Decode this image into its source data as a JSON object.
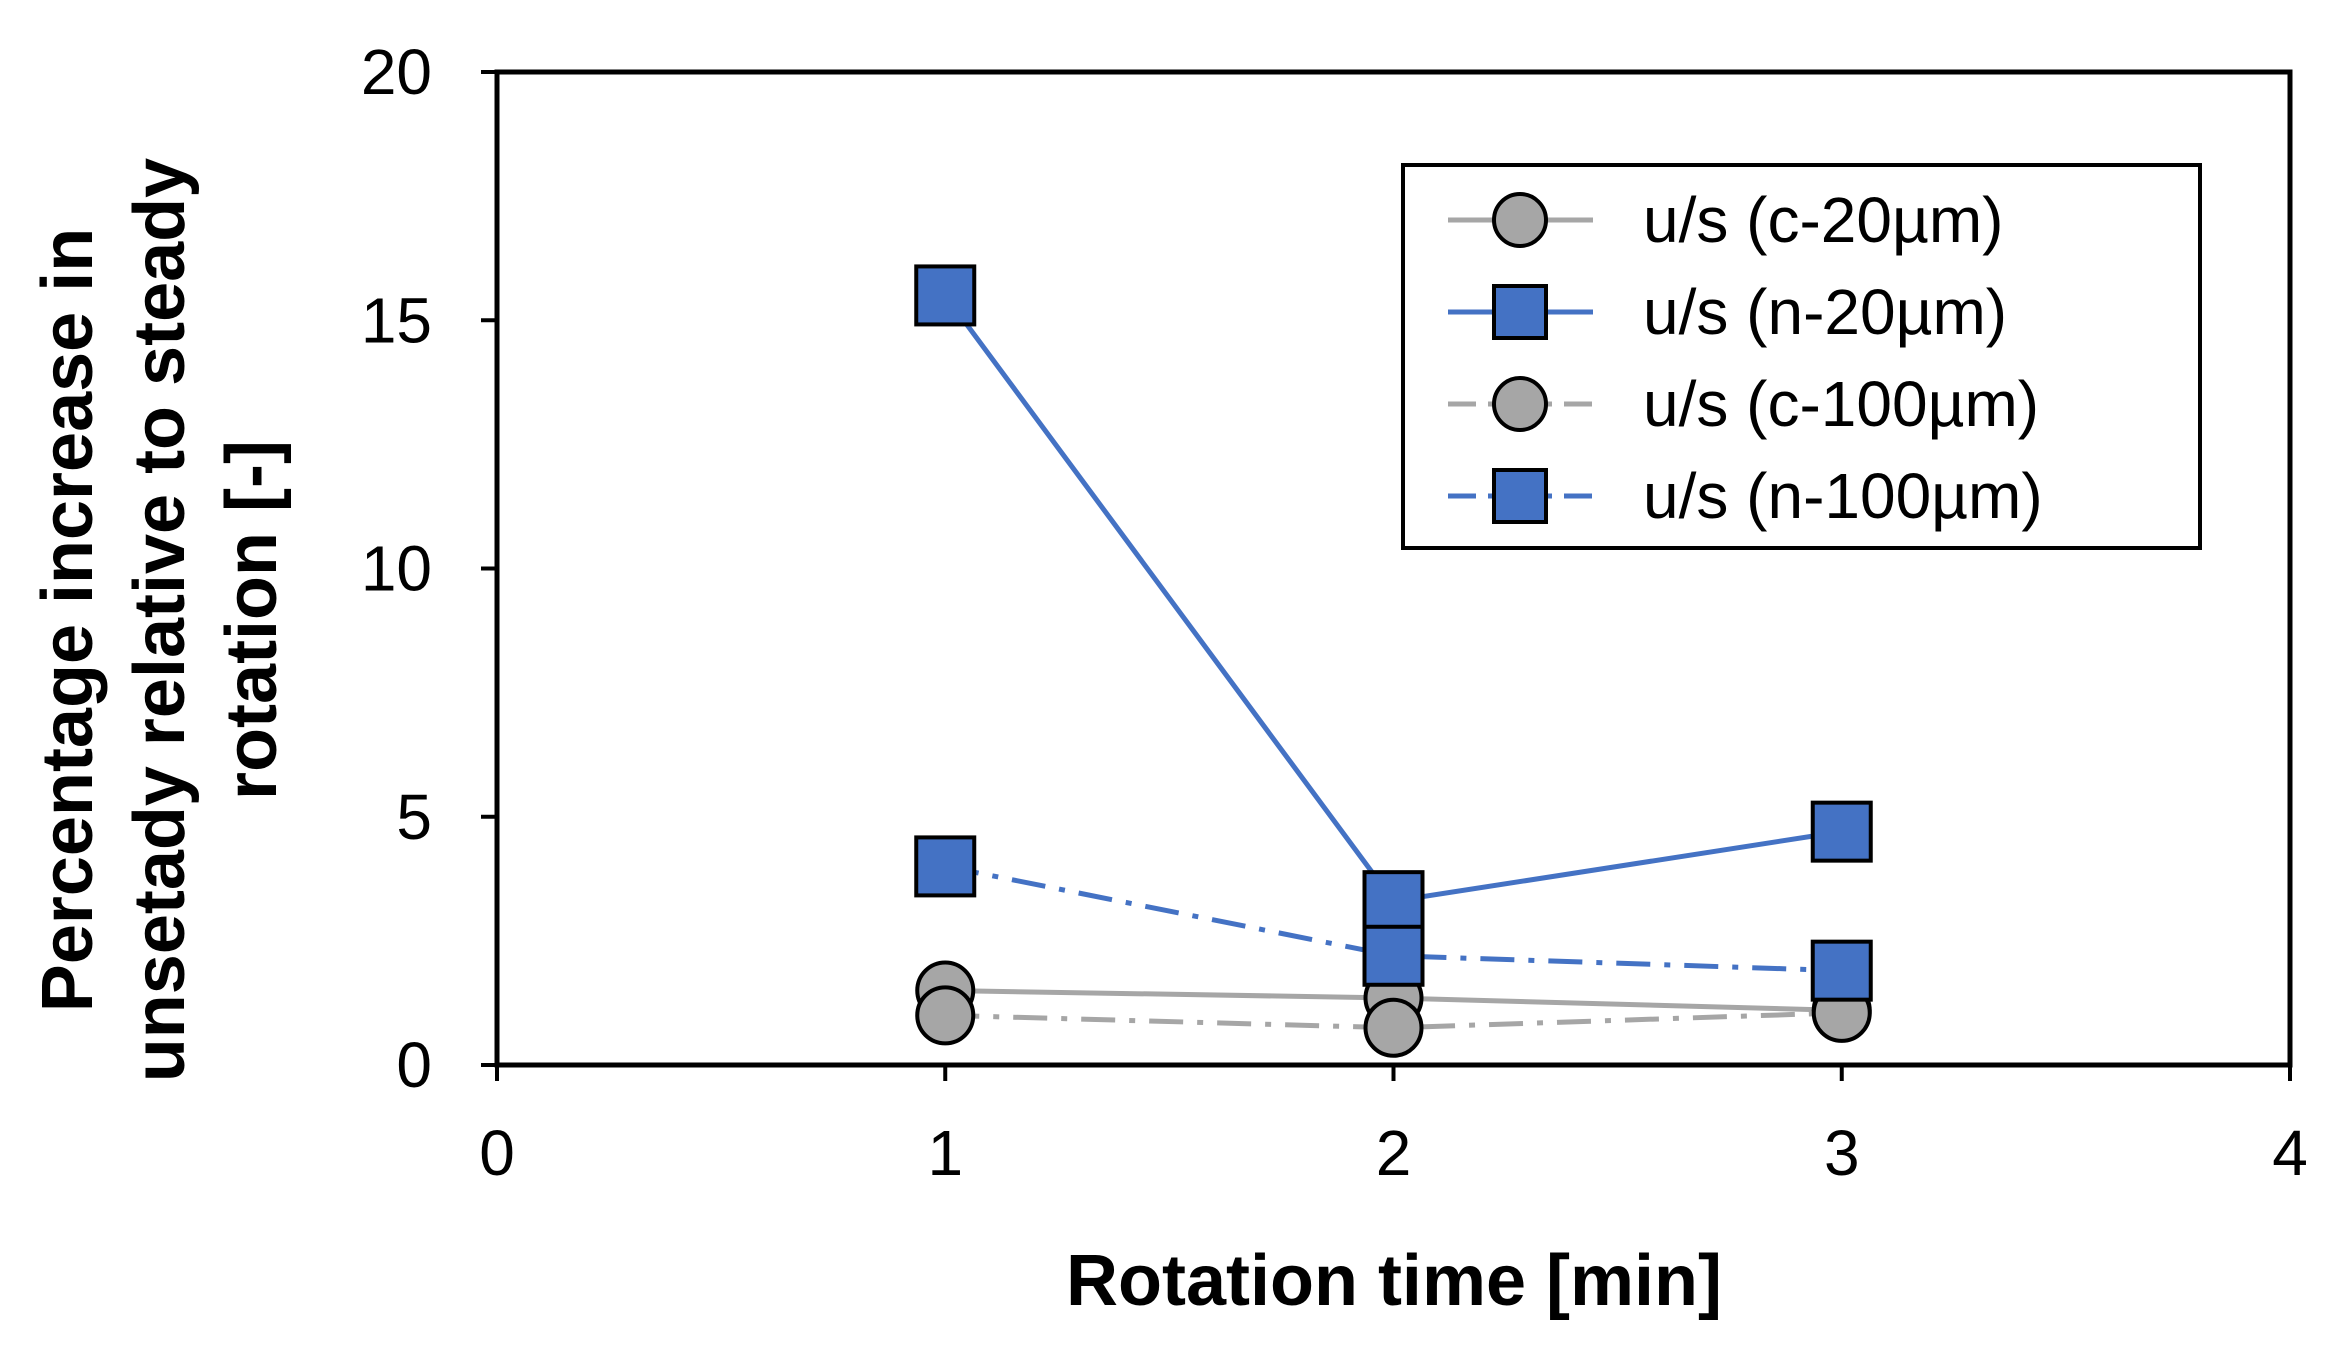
{
  "chart_data": {
    "type": "line",
    "title": "",
    "xlabel": "Rotation time [min]",
    "ylabel_lines": [
      "Percentage increase in",
      "unsetady relative to steady",
      "rotation [-]"
    ],
    "xlim": [
      0,
      4
    ],
    "ylim": [
      0,
      20
    ],
    "xticks": [
      "0",
      "1",
      "2",
      "3",
      "4"
    ],
    "yticks": [
      "0",
      "5",
      "10",
      "15",
      "20"
    ],
    "grid": false,
    "legend_position": "top-right",
    "series": [
      {
        "name": "u/s (c-20µm)",
        "x": [
          1,
          2,
          3
        ],
        "values": [
          1.5,
          1.35,
          1.1
        ],
        "marker": "circle",
        "line": "solid",
        "line_color": "#a6a6a6",
        "marker_color": "#a6a6a6"
      },
      {
        "name": "u/s (n-20µm)",
        "x": [
          1,
          2,
          3
        ],
        "values": [
          15.5,
          3.3,
          4.7
        ],
        "marker": "square",
        "line": "solid",
        "line_color": "#4472c4",
        "marker_color": "#4472c4"
      },
      {
        "name": "u/s (c-100µm)",
        "x": [
          1,
          2,
          3
        ],
        "values": [
          1.0,
          0.75,
          1.05
        ],
        "marker": "circle",
        "line": "dashdot",
        "line_color": "#a6a6a6",
        "marker_color": "#a6a6a6"
      },
      {
        "name": "u/s (n-100µm)",
        "x": [
          1,
          2,
          3
        ],
        "values": [
          4.0,
          2.2,
          1.9
        ],
        "marker": "square",
        "line": "dashdot",
        "line_color": "#4472c4",
        "marker_color": "#4472c4"
      }
    ]
  }
}
